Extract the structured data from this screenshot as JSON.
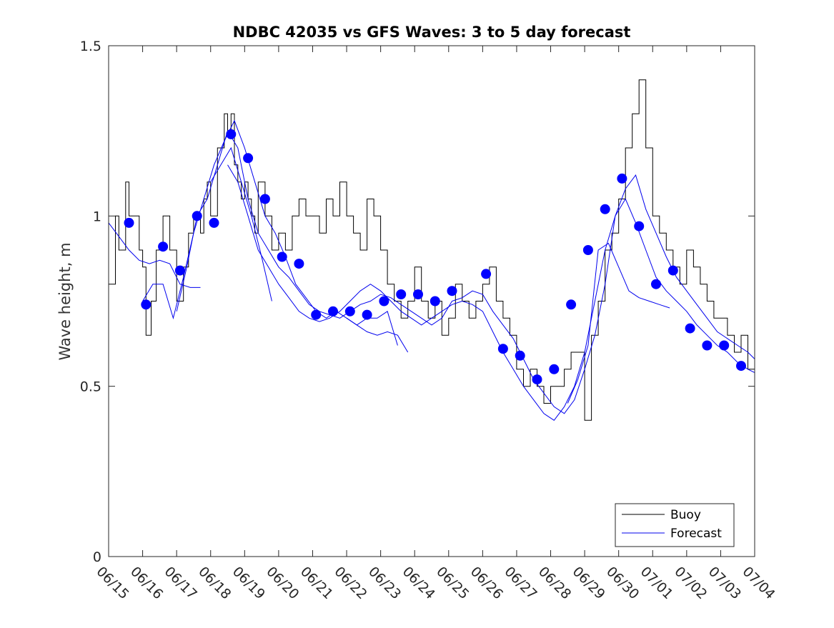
{
  "chart_data": {
    "type": "line",
    "title": "NDBC 42035 vs GFS Waves: 3 to 5 day forecast",
    "xlabel": "",
    "ylabel": "Wave height, m",
    "xlim": [
      "06/15",
      "07/04"
    ],
    "ylim": [
      0,
      1.5
    ],
    "x_ticks": [
      "06/15",
      "06/16",
      "06/17",
      "06/18",
      "06/19",
      "06/20",
      "06/21",
      "06/22",
      "06/23",
      "06/24",
      "06/25",
      "06/26",
      "06/27",
      "06/28",
      "06/29",
      "06/30",
      "07/01",
      "07/02",
      "07/03",
      "07/04"
    ],
    "y_ticks": [
      "0",
      "0.5",
      "1",
      "1.5"
    ],
    "legend": {
      "position": "bottom-right",
      "entries": [
        "Buoy",
        "Forecast"
      ]
    },
    "colors": {
      "buoy": "#000000",
      "forecast": "#0000ee",
      "markers": "#0000ff"
    },
    "series": [
      {
        "name": "Buoy",
        "x": [
          0.0,
          0.2,
          0.3,
          0.5,
          0.6,
          0.9,
          1.0,
          1.1,
          1.25,
          1.4,
          1.6,
          1.8,
          2.0,
          2.2,
          2.35,
          2.5,
          2.7,
          2.8,
          2.9,
          3.0,
          3.2,
          3.4,
          3.5,
          3.6,
          3.7,
          3.8,
          3.9,
          4.0,
          4.1,
          4.2,
          4.3,
          4.4,
          4.6,
          4.8,
          5.0,
          5.2,
          5.4,
          5.6,
          5.8,
          6.0,
          6.2,
          6.4,
          6.6,
          6.8,
          7.0,
          7.2,
          7.4,
          7.6,
          7.8,
          8.0,
          8.2,
          8.4,
          8.6,
          8.8,
          9.0,
          9.2,
          9.4,
          9.6,
          9.8,
          10.0,
          10.2,
          10.4,
          10.6,
          10.8,
          11.0,
          11.2,
          11.4,
          11.6,
          11.8,
          12.0,
          12.2,
          12.4,
          12.6,
          12.8,
          13.0,
          13.2,
          13.4,
          13.6,
          13.8,
          14.0,
          14.2,
          14.4,
          14.6,
          14.8,
          15.0,
          15.2,
          15.4,
          15.6,
          15.8,
          16.0,
          16.2,
          16.4,
          16.6,
          16.8,
          17.0,
          17.2,
          17.4,
          17.6,
          17.8,
          18.0,
          18.2,
          18.4,
          18.6,
          18.8,
          19.0
        ],
        "values": [
          0.8,
          1.0,
          0.9,
          1.1,
          1.0,
          0.9,
          0.85,
          0.65,
          0.75,
          0.9,
          1.0,
          0.9,
          0.75,
          0.85,
          0.95,
          1.0,
          0.95,
          1.05,
          1.1,
          1.0,
          1.2,
          1.3,
          1.25,
          1.3,
          1.15,
          1.1,
          1.05,
          1.1,
          1.05,
          1.0,
          0.95,
          1.1,
          1.0,
          0.9,
          0.95,
          0.9,
          1.0,
          1.05,
          1.0,
          1.0,
          0.95,
          1.05,
          1.0,
          1.1,
          1.0,
          0.95,
          0.9,
          1.05,
          1.0,
          0.9,
          0.8,
          0.75,
          0.7,
          0.75,
          0.85,
          0.75,
          0.7,
          0.75,
          0.65,
          0.7,
          0.8,
          0.75,
          0.7,
          0.75,
          0.8,
          0.85,
          0.75,
          0.7,
          0.65,
          0.55,
          0.5,
          0.55,
          0.5,
          0.45,
          0.5,
          0.5,
          0.55,
          0.6,
          0.6,
          0.4,
          0.65,
          0.75,
          0.9,
          0.95,
          1.05,
          1.2,
          1.3,
          1.4,
          1.2,
          1.0,
          0.95,
          0.9,
          0.85,
          0.8,
          0.9,
          0.85,
          0.8,
          0.75,
          0.7,
          0.7,
          0.65,
          0.6,
          0.65,
          0.55,
          0.5
        ]
      },
      {
        "name": "",
        "x": [
          0.0,
          0.3,
          0.6,
          0.9,
          1.2,
          1.5,
          1.8,
          2.1,
          2.4,
          2.7
        ],
        "values": [
          0.98,
          0.94,
          0.9,
          0.87,
          0.86,
          0.87,
          0.86,
          0.8,
          0.79,
          0.79
        ]
      },
      {
        "name": "",
        "x": [
          1.0,
          1.3,
          1.6,
          1.9,
          2.2,
          2.5,
          2.8,
          3.1,
          3.4,
          3.7,
          4.0,
          4.3,
          4.6,
          4.9,
          5.2,
          5.5,
          5.8,
          6.1,
          6.4,
          6.7,
          7.0,
          7.3,
          7.6,
          7.9,
          8.2,
          8.5
        ],
        "values": [
          0.75,
          0.8,
          0.8,
          0.7,
          0.82,
          0.95,
          1.05,
          1.15,
          1.22,
          1.28,
          1.2,
          1.1,
          1.0,
          0.95,
          0.88,
          0.8,
          0.76,
          0.72,
          0.7,
          0.72,
          0.7,
          0.68,
          0.7,
          0.7,
          0.72,
          0.62
        ]
      },
      {
        "name": "",
        "x": [
          2.0,
          2.3,
          2.6,
          2.9,
          3.2,
          3.5,
          3.8,
          4.1,
          4.4,
          4.7,
          5.0,
          5.3,
          5.6,
          5.9,
          6.2,
          6.5,
          6.8,
          7.1,
          7.4,
          7.7,
          8.0,
          8.3,
          8.6,
          8.9,
          9.2,
          9.5,
          9.8,
          10.1,
          10.4,
          10.7,
          11.0,
          11.3,
          11.6,
          11.9,
          12.2,
          12.5,
          12.8,
          13.1,
          13.4,
          13.7,
          14.0,
          14.3,
          14.6,
          14.9,
          15.2,
          15.5,
          15.8,
          16.1,
          16.4,
          16.7,
          17.0,
          17.3,
          17.6,
          17.9,
          18.2,
          18.5,
          18.8,
          19.0
        ],
        "values": [
          0.72,
          0.85,
          1.0,
          1.05,
          1.15,
          1.25,
          1.2,
          1.05,
          0.95,
          0.9,
          0.85,
          0.82,
          0.78,
          0.74,
          0.72,
          0.71,
          0.7,
          0.72,
          0.74,
          0.75,
          0.77,
          0.76,
          0.74,
          0.72,
          0.7,
          0.68,
          0.7,
          0.75,
          0.76,
          0.78,
          0.77,
          0.72,
          0.68,
          0.64,
          0.58,
          0.52,
          0.48,
          0.44,
          0.42,
          0.46,
          0.55,
          0.65,
          0.8,
          1.0,
          1.08,
          1.12,
          1.02,
          0.95,
          0.88,
          0.82,
          0.78,
          0.74,
          0.7,
          0.66,
          0.64,
          0.62,
          0.6,
          0.58
        ]
      },
      {
        "name": "",
        "x": [
          3.5,
          3.8,
          4.1,
          4.4,
          4.7,
          5.0,
          5.3,
          5.6,
          5.9,
          6.2,
          6.5,
          6.8,
          7.1,
          7.4,
          7.7,
          8.0,
          8.3,
          8.6,
          8.9,
          9.2,
          9.5,
          9.8,
          10.1,
          10.4,
          10.7,
          11.0,
          11.3,
          11.6,
          11.9,
          12.2,
          12.5,
          12.8,
          13.1,
          13.4,
          13.7,
          14.0,
          14.3,
          14.6,
          14.9,
          15.2,
          15.5,
          15.8,
          16.1,
          16.4,
          16.7,
          17.0,
          17.3,
          17.6,
          17.9,
          18.2,
          18.5,
          18.8,
          19.0
        ],
        "values": [
          1.15,
          1.1,
          1.0,
          0.9,
          0.85,
          0.8,
          0.76,
          0.72,
          0.7,
          0.69,
          0.7,
          0.72,
          0.75,
          0.78,
          0.8,
          0.78,
          0.75,
          0.72,
          0.7,
          0.68,
          0.7,
          0.72,
          0.74,
          0.75,
          0.74,
          0.72,
          0.66,
          0.6,
          0.55,
          0.5,
          0.46,
          0.42,
          0.4,
          0.44,
          0.5,
          0.6,
          0.75,
          0.9,
          1.0,
          1.05,
          0.98,
          0.9,
          0.82,
          0.78,
          0.75,
          0.72,
          0.68,
          0.65,
          0.62,
          0.6,
          0.57,
          0.55,
          0.54
        ]
      },
      {
        "name": "",
        "x": [
          3.0,
          3.3,
          3.6,
          3.9,
          4.2,
          4.5,
          4.8
        ],
        "values": [
          1.1,
          1.15,
          1.2,
          1.1,
          1.0,
          0.88,
          0.75
        ]
      },
      {
        "name": "",
        "x": [
          13.5,
          13.8,
          14.1,
          14.4,
          14.7,
          15.0,
          15.3,
          15.6,
          15.9,
          16.2,
          16.5
        ],
        "values": [
          0.45,
          0.52,
          0.62,
          0.9,
          0.92,
          0.85,
          0.78,
          0.76,
          0.75,
          0.74,
          0.73
        ]
      },
      {
        "name": "",
        "x": [
          7.0,
          7.3,
          7.6,
          7.9,
          8.2,
          8.5,
          8.8
        ],
        "values": [
          0.7,
          0.68,
          0.66,
          0.65,
          0.66,
          0.65,
          0.6
        ]
      }
    ],
    "markers": {
      "x": [
        0.6,
        1.1,
        1.6,
        2.1,
        2.6,
        3.1,
        3.6,
        4.1,
        4.6,
        5.1,
        5.6,
        6.1,
        6.6,
        7.1,
        7.6,
        8.1,
        8.6,
        9.1,
        9.6,
        10.1,
        11.1,
        11.6,
        12.1,
        12.6,
        13.1,
        13.6,
        14.1,
        14.6,
        15.1,
        15.6,
        16.1,
        16.6,
        17.1,
        17.6,
        18.1,
        18.6
      ],
      "values": [
        0.98,
        0.74,
        0.91,
        0.84,
        1.0,
        0.98,
        1.24,
        1.17,
        1.05,
        0.88,
        0.86,
        0.71,
        0.72,
        0.72,
        0.71,
        0.75,
        0.77,
        0.77,
        0.75,
        0.78,
        0.83,
        0.61,
        0.59,
        0.52,
        0.55,
        0.74,
        0.9,
        1.02,
        1.11,
        0.97,
        0.8,
        0.84,
        0.67,
        0.62,
        0.62,
        0.56
      ]
    }
  }
}
